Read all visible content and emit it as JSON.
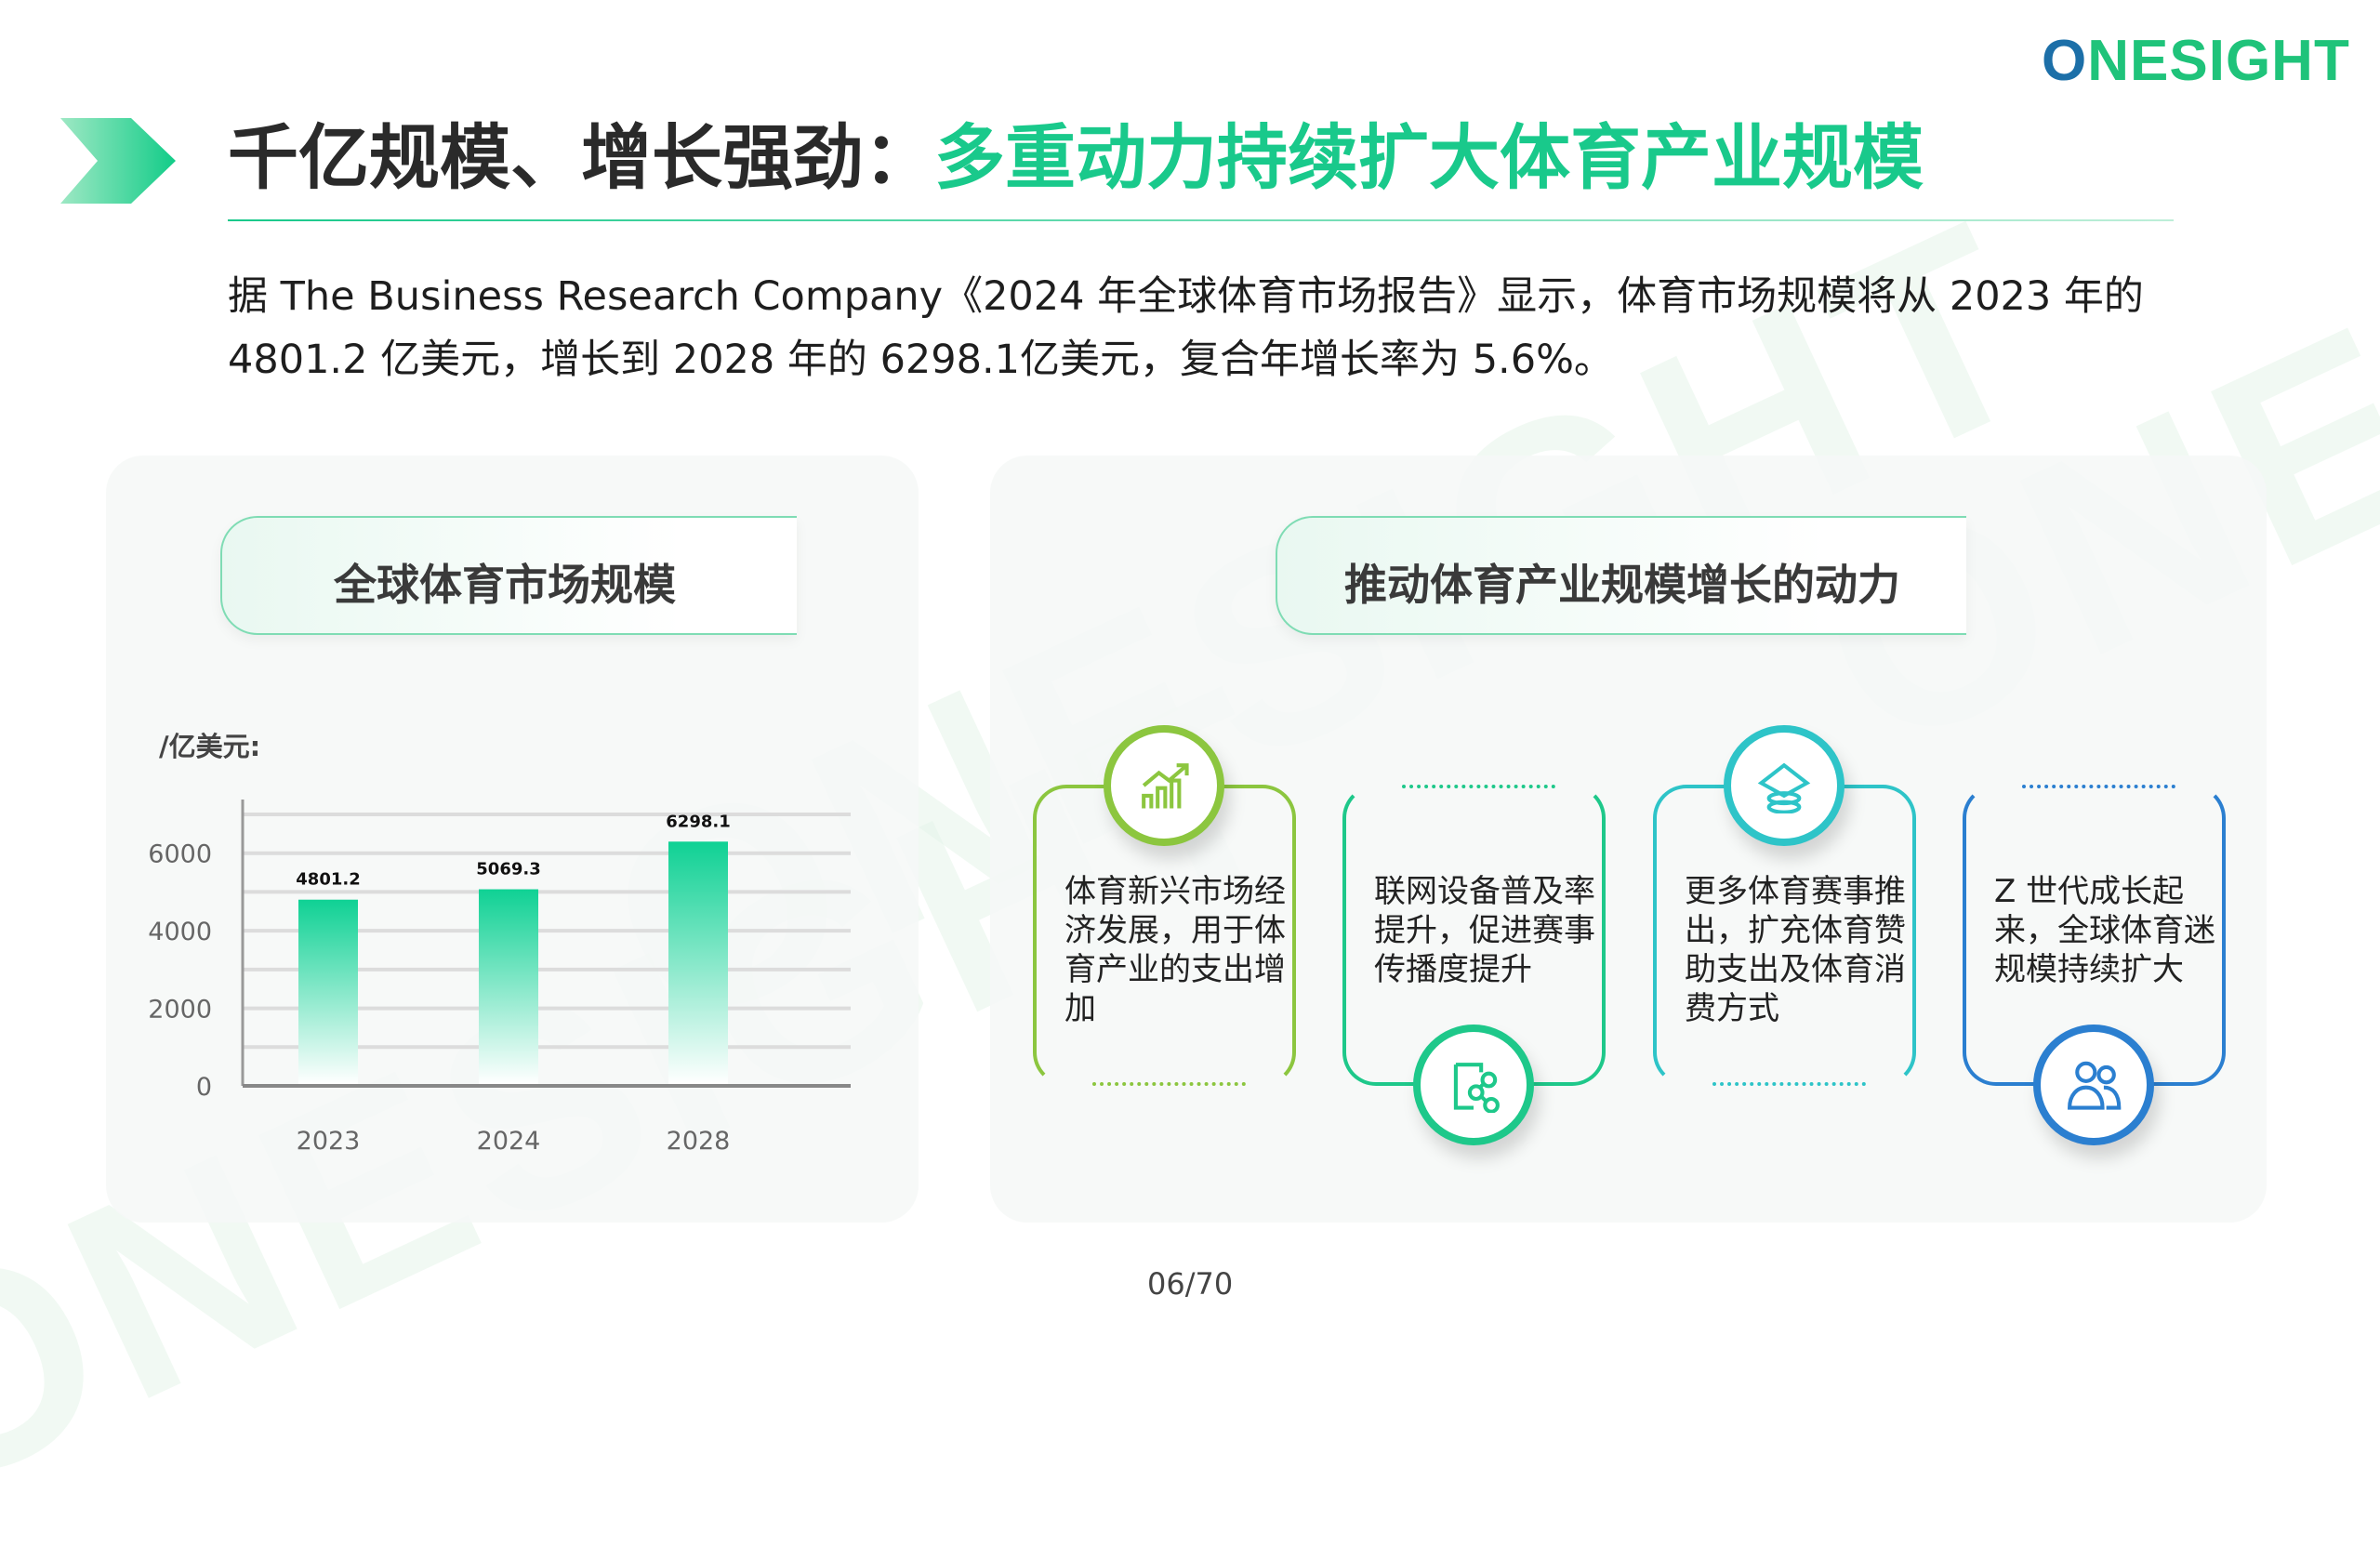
{
  "brand": {
    "logo_text": "ONESIGHT",
    "watermark": "ONESIGHT",
    "accent": "#19c98b"
  },
  "header": {
    "title_part1": "千亿规模、增长强劲：",
    "title_part2": "多重动力持续扩大体育产业规模"
  },
  "intro": "据 The Business Research Company《2024 年全球体育市场报告》显示，体育市场规模将从 2023 年的 4801.2 亿美元，增长到 2028 年的 6298.1亿美元，复合年增长率为 5.6%。",
  "left_panel": {
    "heading": "全球体育市场规模",
    "unit": "/亿美元:"
  },
  "chart_data": {
    "type": "bar",
    "categories": [
      "2023",
      "2024",
      "2028"
    ],
    "values": [
      4801.2,
      5069.3,
      6298.1
    ],
    "data_labels": [
      "4801.2",
      "5069.3",
      "6298.1"
    ],
    "y_ticks": [
      "0",
      "2000",
      "4000",
      "6000"
    ],
    "ylim": [
      0,
      7000
    ],
    "grid": true,
    "bar_color": "#12d197",
    "ylabel": "/亿美元:"
  },
  "right_panel": {
    "heading": "推动体育产业规模增长的动力",
    "cards": [
      {
        "text": "体育新兴市场经济发展，用于体育产业的支出增加",
        "icon": "growth-chart-icon",
        "color": "#8cc63f"
      },
      {
        "text": "联网设备普及率提升，促进赛事传播度提升",
        "icon": "share-network-icon",
        "color": "#1ec88a"
      },
      {
        "text": "更多体育赛事推出，扩充体育赞助支出及体育消费方式",
        "icon": "coins-stack-icon",
        "color": "#2ec4c8"
      },
      {
        "text": "Z 世代成长起来，全球体育迷规模持续扩大",
        "icon": "users-icon",
        "color": "#2b7fd0"
      }
    ]
  },
  "footer": {
    "page": "06/70"
  }
}
